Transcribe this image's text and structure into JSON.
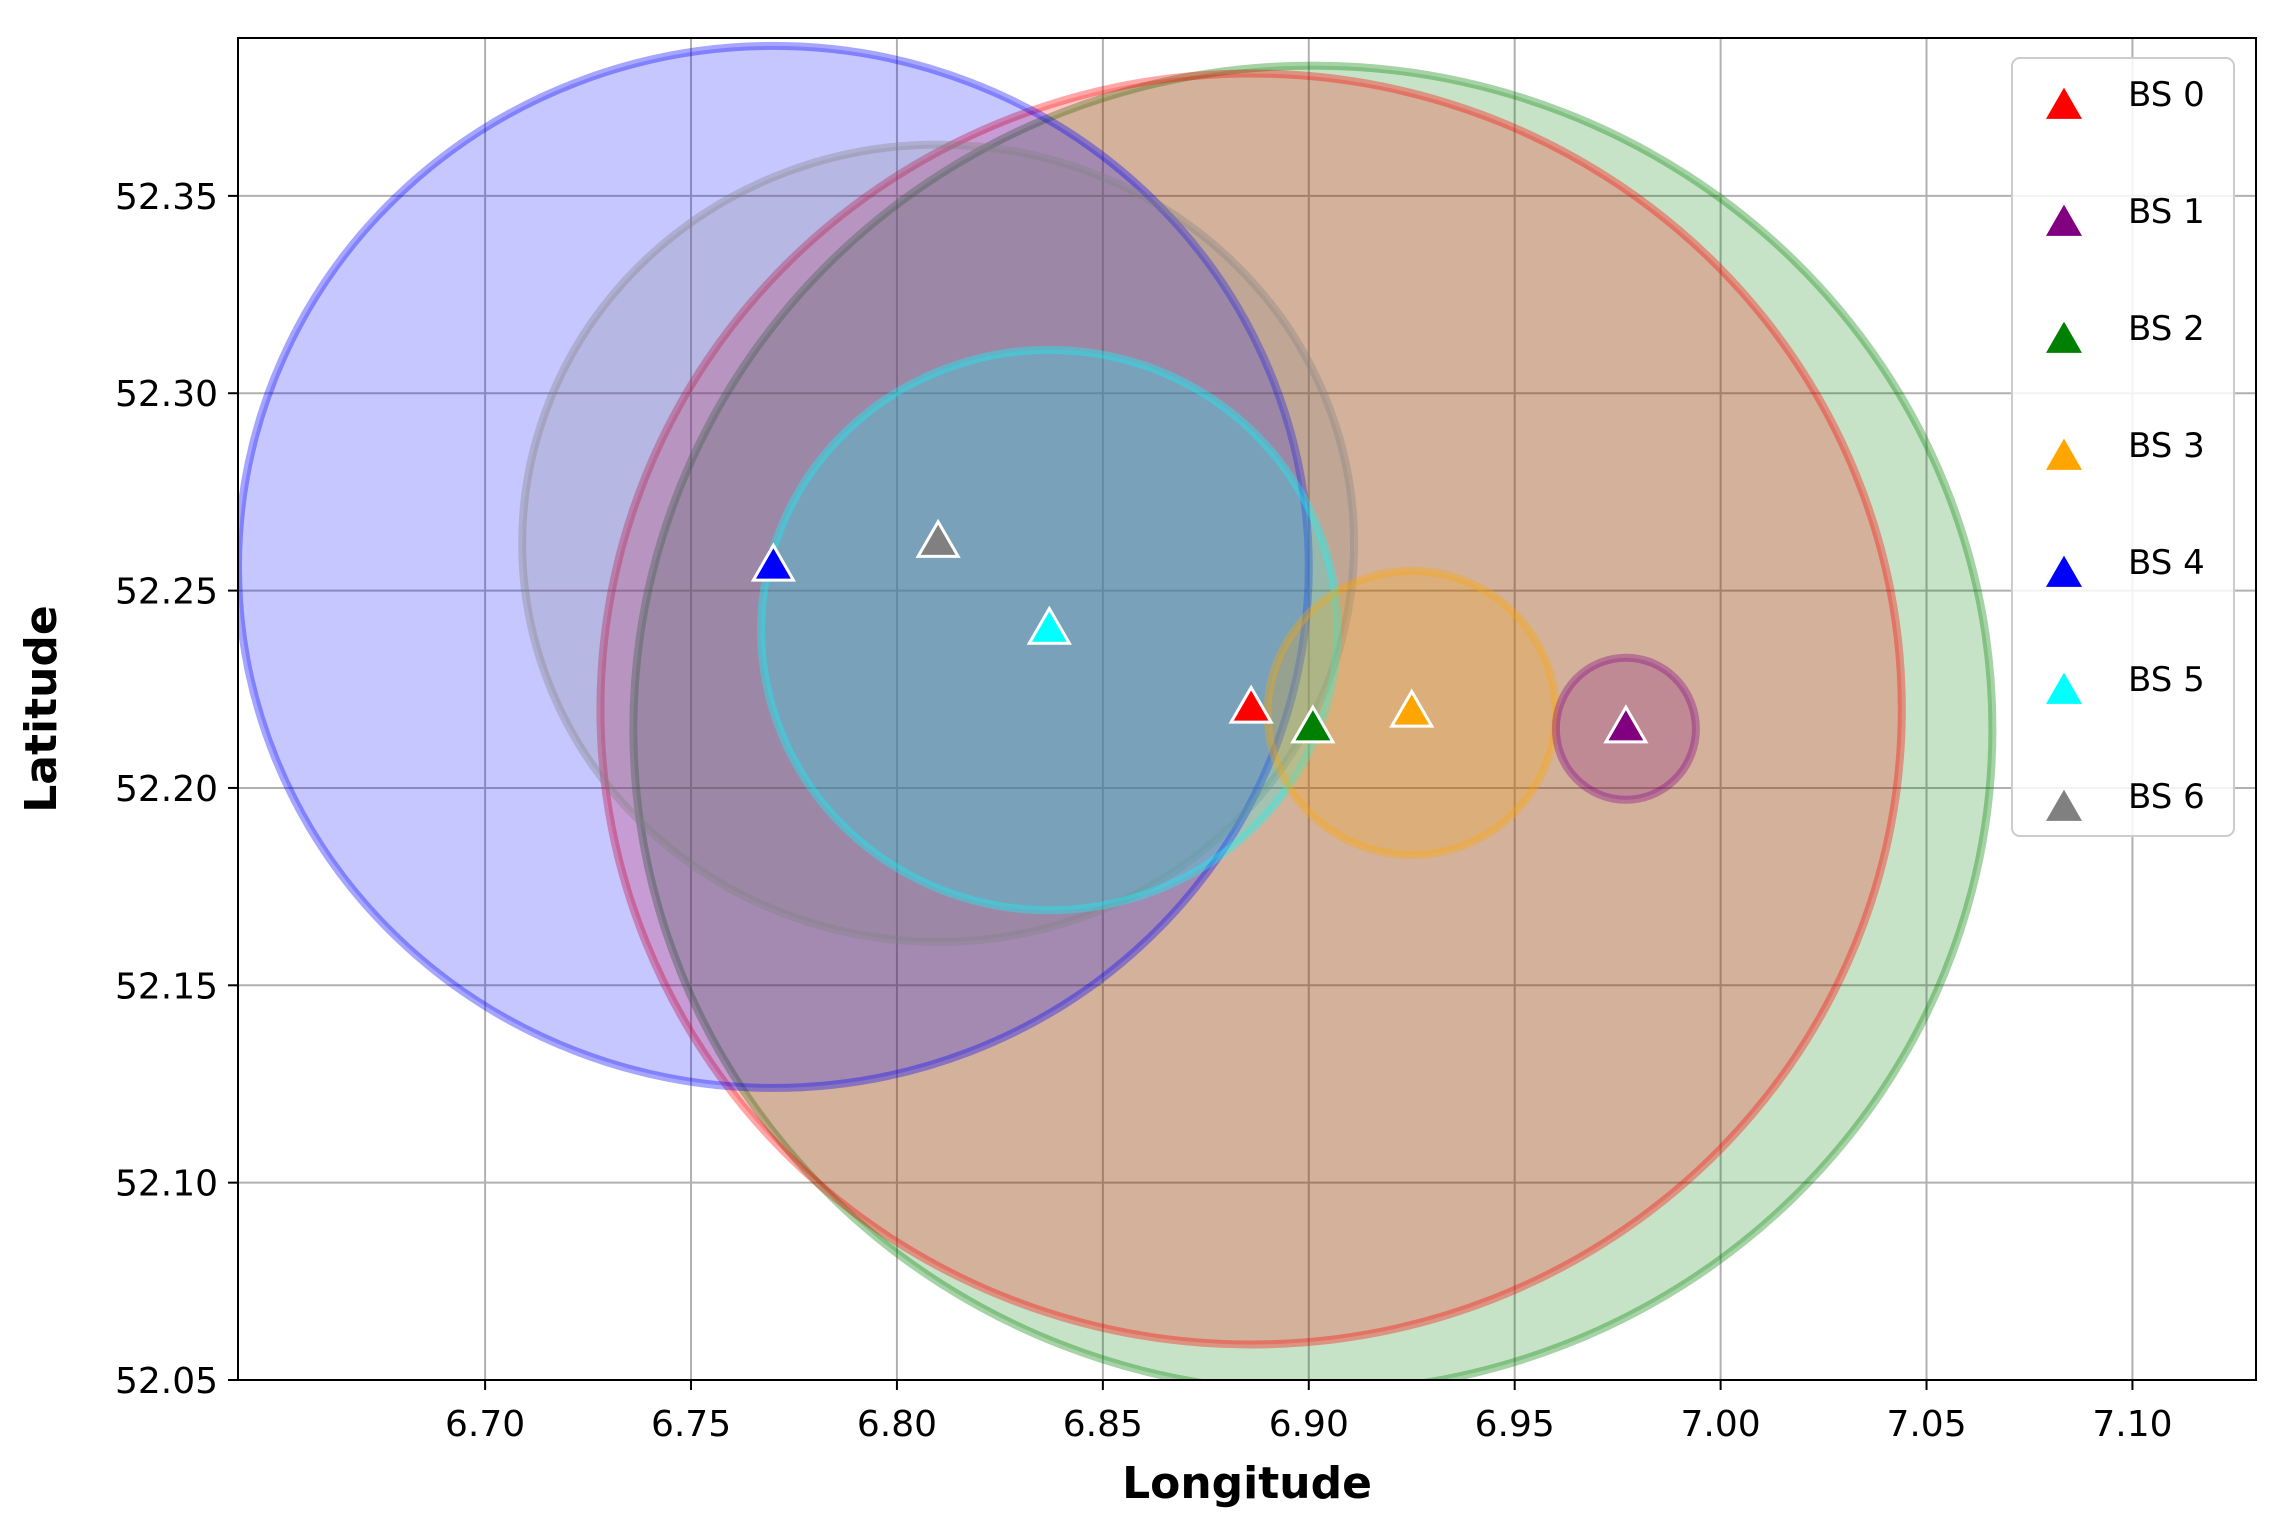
{
  "chart_data": {
    "type": "scatter",
    "title": "",
    "xlabel": "Longitude",
    "ylabel": "Latitude",
    "xlim": [
      6.64,
      7.13
    ],
    "ylim": [
      52.05,
      52.39
    ],
    "xticks": [
      "6.70",
      "6.75",
      "6.80",
      "6.85",
      "6.90",
      "6.95",
      "7.00",
      "7.05",
      "7.10"
    ],
    "yticks": [
      "52.05",
      "52.10",
      "52.15",
      "52.20",
      "52.25",
      "52.30",
      "52.35"
    ],
    "grid": true,
    "legend_position": "top-right",
    "series": [
      {
        "name": "BS 0",
        "color": "#ff0000",
        "lon": 6.886,
        "lat": 52.22,
        "coverage_radius_lon": 0.158,
        "coverage_radius_lat": 0.161
      },
      {
        "name": "BS 1",
        "color": "#800080",
        "lon": 6.977,
        "lat": 52.215,
        "coverage_radius_lon": 0.017,
        "coverage_radius_lat": 0.018
      },
      {
        "name": "BS 2",
        "color": "#008000",
        "lon": 6.901,
        "lat": 52.215,
        "coverage_radius_lon": 0.165,
        "coverage_radius_lat": 0.168
      },
      {
        "name": "BS 3",
        "color": "#ffa500",
        "lon": 6.925,
        "lat": 52.219,
        "coverage_radius_lon": 0.035,
        "coverage_radius_lat": 0.036
      },
      {
        "name": "BS 4",
        "color": "#0000ff",
        "lon": 6.77,
        "lat": 52.256,
        "coverage_radius_lon": 0.13,
        "coverage_radius_lat": 0.132
      },
      {
        "name": "BS 5",
        "color": "#00ffff",
        "lon": 6.837,
        "lat": 52.24,
        "coverage_radius_lon": 0.07,
        "coverage_radius_lat": 0.071
      },
      {
        "name": "BS 6",
        "color": "#808080",
        "lon": 6.81,
        "lat": 52.262,
        "coverage_radius_lon": 0.101,
        "coverage_radius_lat": 0.101
      }
    ]
  }
}
